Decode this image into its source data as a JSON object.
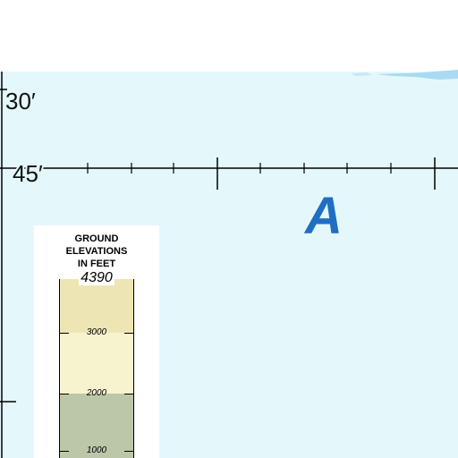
{
  "lat_labels": [
    "30′",
    "45′"
  ],
  "area_label": "A",
  "legend": {
    "title_lines": [
      "GROUND",
      "ELEVATIONS",
      "IN FEET"
    ],
    "max_value": "4390",
    "tick_labels": [
      "3000",
      "2000",
      "1000"
    ]
  },
  "colors": {
    "water": "#e4f8fc",
    "shoal": "#a9daf2",
    "label_blue": "#1f6ec2",
    "band_high": "#ede5b4",
    "band_mid": "#f7f3cf",
    "band_low": "#bcc7a8"
  }
}
